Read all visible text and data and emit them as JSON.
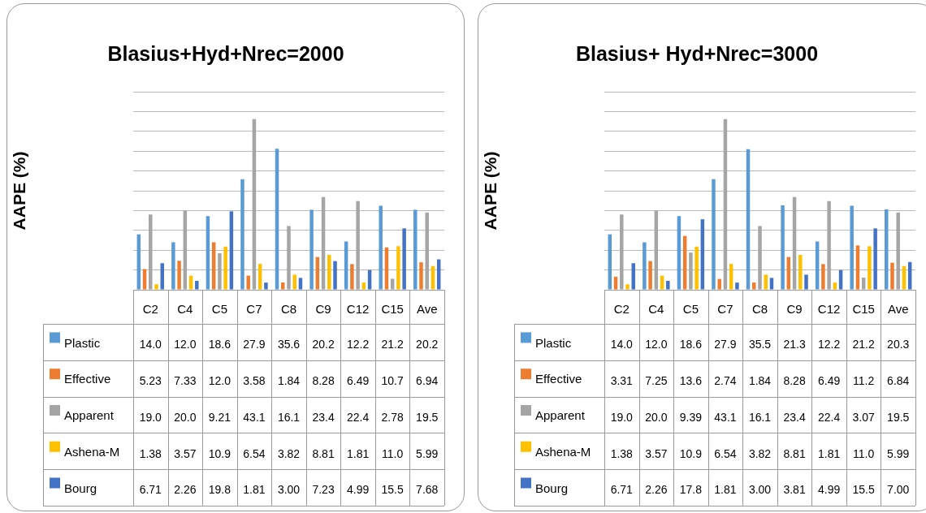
{
  "chart_data": [
    {
      "type": "bar",
      "title": "Blasius+Hyd+Nrec=2000",
      "ylabel": "AAPE (%)",
      "categories": [
        "C2",
        "C4",
        "C5",
        "C7",
        "C8",
        "C9",
        "C12",
        "C15",
        "Ave"
      ],
      "ylim": [
        0,
        50
      ],
      "yticks": [
        {
          "value": 0,
          "label": null
        },
        {
          "value": 5,
          "label": null
        },
        {
          "value": 10,
          "label": null
        },
        {
          "value": 15,
          "label": null
        },
        {
          "value": 20,
          "label": null
        },
        {
          "value": 25,
          "label": null
        },
        {
          "value": 30,
          "label": null
        },
        {
          "value": 35,
          "label": null
        },
        {
          "value": 40,
          "label": null
        },
        {
          "value": 45,
          "label": null
        },
        {
          "value": 50,
          "label": null
        }
      ],
      "grid": "y",
      "tick_labels": "x",
      "legend": "bottom",
      "series": [
        {
          "name": "Plastic",
          "color": "#5b9bd5",
          "values": [
            14.0,
            12.0,
            18.6,
            27.9,
            35.6,
            20.2,
            12.2,
            21.2,
            20.2
          ],
          "value_labels": [
            "14.0",
            "12.0",
            "18.6",
            "27.9",
            "35.6",
            "20.2",
            "12.2",
            "21.2",
            "20.2"
          ]
        },
        {
          "name": "Effective",
          "color": "#ed7d31",
          "values": [
            5.23,
            7.33,
            12.0,
            3.58,
            1.84,
            8.28,
            6.49,
            10.7,
            6.94
          ],
          "value_labels": [
            "5.23",
            "7.33",
            "12.0",
            "3.58",
            "1.84",
            "8.28",
            "6.49",
            "10.7",
            "6.94"
          ]
        },
        {
          "name": "Apparent",
          "color": "#a5a5a5",
          "values": [
            19.0,
            20.0,
            9.21,
            43.1,
            16.1,
            23.4,
            22.4,
            2.78,
            19.5
          ],
          "value_labels": [
            "19.0",
            "20.0",
            "9.21",
            "43.1",
            "16.1",
            "23.4",
            "22.4",
            "2.78",
            "19.5"
          ]
        },
        {
          "name": "Ashena-M",
          "color": "#ffc000",
          "values": [
            1.38,
            3.57,
            10.9,
            6.54,
            3.82,
            8.81,
            1.81,
            11.0,
            5.99
          ],
          "value_labels": [
            "1.38",
            "3.57",
            "10.9",
            "6.54",
            "3.82",
            "8.81",
            "1.81",
            "11.0",
            "5.99"
          ]
        },
        {
          "name": "Bourg",
          "color": "#4472c4",
          "values": [
            6.71,
            2.26,
            19.8,
            1.81,
            3.0,
            7.23,
            4.99,
            15.5,
            7.68
          ],
          "value_labels": [
            "6.71",
            "2.26",
            "19.8",
            "1.81",
            "3.00",
            "7.23",
            "4.99",
            "15.5",
            "7.68"
          ]
        }
      ]
    },
    {
      "type": "bar",
      "title": "Blasius+ Hyd+Nrec=3000",
      "ylabel": "AAPE (%)",
      "categories": [
        "C2",
        "C4",
        "C5",
        "C7",
        "C8",
        "C9",
        "C12",
        "C15",
        "Ave"
      ],
      "ylim": [
        0,
        50
      ],
      "yticks": [
        {
          "value": 0,
          "label": null
        },
        {
          "value": 5,
          "label": null
        },
        {
          "value": 10,
          "label": null
        },
        {
          "value": 15,
          "label": null
        },
        {
          "value": 20,
          "label": null
        },
        {
          "value": 25,
          "label": null
        },
        {
          "value": 30,
          "label": null
        },
        {
          "value": 35,
          "label": null
        },
        {
          "value": 40,
          "label": null
        },
        {
          "value": 45,
          "label": null
        },
        {
          "value": 50,
          "label": null
        }
      ],
      "grid": "y",
      "tick_labels": "x",
      "legend": "bottom",
      "series": [
        {
          "name": "Plastic",
          "color": "#5b9bd5",
          "values": [
            14.0,
            12.0,
            18.6,
            27.9,
            35.5,
            21.3,
            12.2,
            21.2,
            20.3
          ],
          "value_labels": [
            "14.0",
            "12.0",
            "18.6",
            "27.9",
            "35.5",
            "21.3",
            "12.2",
            "21.2",
            "20.3"
          ]
        },
        {
          "name": "Effective",
          "color": "#ed7d31",
          "values": [
            3.31,
            7.25,
            13.6,
            2.74,
            1.84,
            8.28,
            6.49,
            11.2,
            6.84
          ],
          "value_labels": [
            "3.31",
            "7.25",
            "13.6",
            "2.74",
            "1.84",
            "8.28",
            "6.49",
            "11.2",
            "6.84"
          ]
        },
        {
          "name": "Apparent",
          "color": "#a5a5a5",
          "values": [
            19.0,
            20.0,
            9.39,
            43.1,
            16.1,
            23.4,
            22.4,
            3.07,
            19.5
          ],
          "value_labels": [
            "19.0",
            "20.0",
            "9.39",
            "43.1",
            "16.1",
            "23.4",
            "22.4",
            "3.07",
            "19.5"
          ]
        },
        {
          "name": "Ashena-M",
          "color": "#ffc000",
          "values": [
            1.38,
            3.57,
            10.9,
            6.54,
            3.82,
            8.81,
            1.81,
            11.0,
            5.99
          ],
          "value_labels": [
            "1.38",
            "3.57",
            "10.9",
            "6.54",
            "3.82",
            "8.81",
            "1.81",
            "11.0",
            "5.99"
          ]
        },
        {
          "name": "Bourg",
          "color": "#4472c4",
          "values": [
            6.71,
            2.26,
            17.8,
            1.81,
            3.0,
            3.81,
            4.99,
            15.5,
            7.0
          ],
          "value_labels": [
            "6.71",
            "2.26",
            "17.8",
            "1.81",
            "3.00",
            "3.81",
            "4.99",
            "15.5",
            "7.00"
          ]
        }
      ]
    }
  ]
}
